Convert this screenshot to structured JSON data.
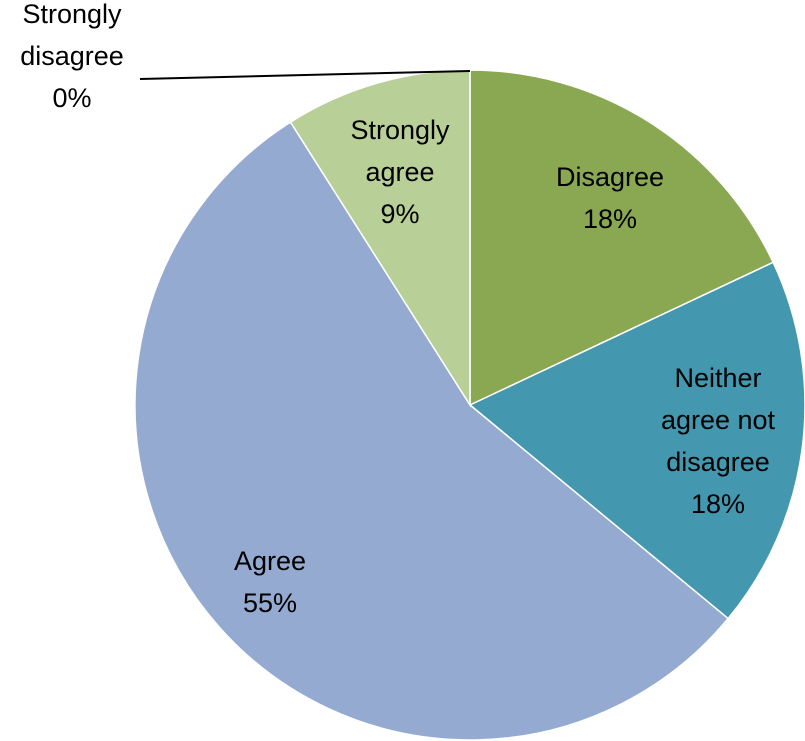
{
  "chart_data": {
    "type": "pie",
    "title": "",
    "start_angle_deg": 0,
    "direction": "clockwise",
    "slices": [
      {
        "label": "Disagree",
        "value": 18,
        "value_label": "18%",
        "color": "#8aa752",
        "label_lines": [
          "Disagree"
        ]
      },
      {
        "label": "Neither agree not disagree",
        "value": 18,
        "value_label": "18%",
        "color": "#4398b0",
        "label_lines": [
          "Neither",
          "agree not",
          "disagree"
        ]
      },
      {
        "label": "Agree",
        "value": 55,
        "value_label": "55%",
        "color": "#95aad1",
        "label_lines": [
          "Agree"
        ]
      },
      {
        "label": "Strongly agree",
        "value": 9,
        "value_label": "9%",
        "color": "#b9cf98",
        "label_lines": [
          "Strongly",
          "agree"
        ]
      },
      {
        "label": "Strongly disagree",
        "value": 0,
        "value_label": "0%",
        "color": "#c0504d",
        "label_lines": [
          "Strongly",
          "disagree"
        ],
        "label_outside": true
      }
    ],
    "legend": "none"
  }
}
